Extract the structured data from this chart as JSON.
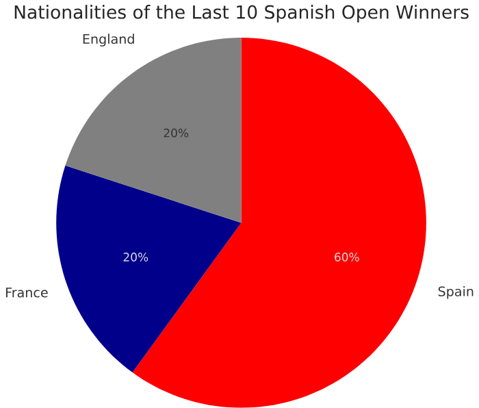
{
  "chart_data": {
    "type": "pie",
    "title": "Nationalities of the Last 10 Spanish Open Winners",
    "categories": [
      "Spain",
      "France",
      "England"
    ],
    "values": [
      60,
      20,
      20
    ],
    "colors": [
      "#ff0000",
      "#00008b",
      "#808080"
    ],
    "value_labels": [
      "60%",
      "20%",
      "20%"
    ]
  }
}
